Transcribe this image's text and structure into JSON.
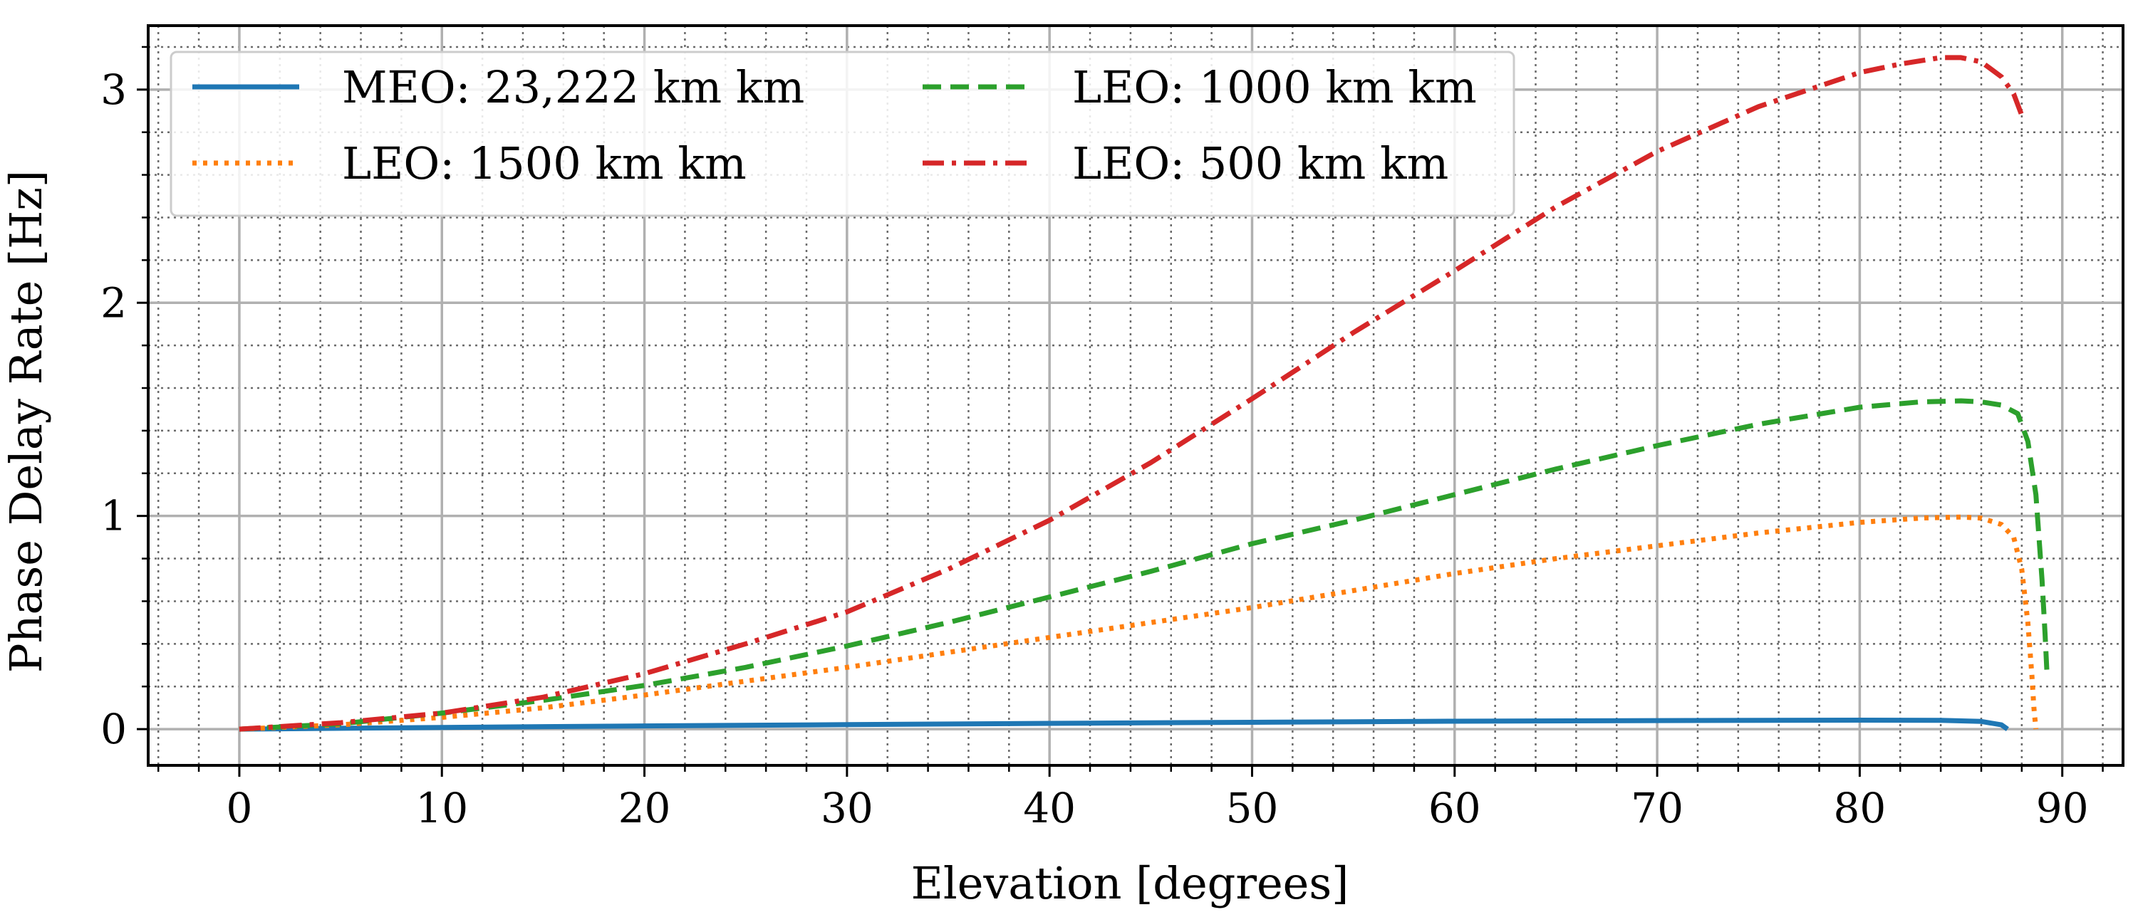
{
  "chart_data": {
    "type": "line",
    "title": "",
    "xlabel": "Elevation [degrees]",
    "ylabel": "Phase Delay Rate [Hz]",
    "xlim": [
      -4.5,
      93
    ],
    "ylim": [
      -0.17,
      3.3
    ],
    "xticks": [
      0,
      10,
      20,
      30,
      40,
      50,
      60,
      70,
      80,
      90
    ],
    "yticks": [
      0,
      1,
      2,
      3
    ],
    "x_minor_step": 2,
    "y_minor_step": 0.2,
    "grid": "major solid + minor dotted",
    "legend": {
      "location": "top-left",
      "columns": 2
    },
    "series": [
      {
        "name": "MEO: 23,222 km km",
        "color": "#1f77b4",
        "style": "solid",
        "x": [
          0,
          10,
          20,
          30,
          40,
          50,
          60,
          70,
          80,
          84,
          86,
          87,
          87.3
        ],
        "values": [
          0,
          0.008,
          0.015,
          0.021,
          0.027,
          0.032,
          0.037,
          0.04,
          0.042,
          0.041,
          0.036,
          0.02,
          0.0
        ]
      },
      {
        "name": "LEO: 1500 km km",
        "color": "#ff7f0e",
        "style": "dotted",
        "x": [
          0,
          5,
          10,
          15,
          20,
          25,
          30,
          35,
          40,
          45,
          50,
          55,
          60,
          65,
          70,
          75,
          80,
          83,
          85,
          86,
          87,
          87.6,
          88,
          88.3,
          88.5,
          88.6,
          88.7
        ],
        "values": [
          0,
          0.02,
          0.055,
          0.1,
          0.16,
          0.225,
          0.29,
          0.36,
          0.43,
          0.5,
          0.57,
          0.65,
          0.73,
          0.8,
          0.86,
          0.92,
          0.97,
          0.99,
          0.995,
          0.99,
          0.96,
          0.9,
          0.75,
          0.5,
          0.25,
          0.1,
          0.0
        ]
      },
      {
        "name": "LEO: 1000 km km",
        "color": "#2ca02c",
        "style": "dashed",
        "x": [
          0,
          5,
          10,
          15,
          20,
          25,
          30,
          35,
          40,
          45,
          50,
          55,
          60,
          65,
          70,
          75,
          80,
          83,
          85,
          86,
          87,
          87.8,
          88.3,
          88.7,
          89,
          89.15,
          89.25
        ],
        "values": [
          0,
          0.025,
          0.075,
          0.135,
          0.205,
          0.29,
          0.39,
          0.5,
          0.62,
          0.74,
          0.87,
          0.98,
          1.1,
          1.22,
          1.33,
          1.43,
          1.51,
          1.535,
          1.54,
          1.535,
          1.52,
          1.48,
          1.35,
          1.1,
          0.7,
          0.45,
          0.25
        ]
      },
      {
        "name": "LEO: 500 km km",
        "color": "#d62728",
        "style": "dashdot",
        "x": [
          0,
          5,
          10,
          15,
          20,
          25,
          30,
          35,
          40,
          45,
          50,
          55,
          60,
          65,
          70,
          75,
          80,
          82,
          84,
          85,
          86,
          87,
          87.6,
          88
        ],
        "values": [
          0,
          0.03,
          0.075,
          0.15,
          0.26,
          0.4,
          0.55,
          0.75,
          0.98,
          1.25,
          1.55,
          1.86,
          2.15,
          2.45,
          2.71,
          2.92,
          3.08,
          3.12,
          3.15,
          3.15,
          3.13,
          3.06,
          2.98,
          2.88
        ]
      }
    ]
  }
}
